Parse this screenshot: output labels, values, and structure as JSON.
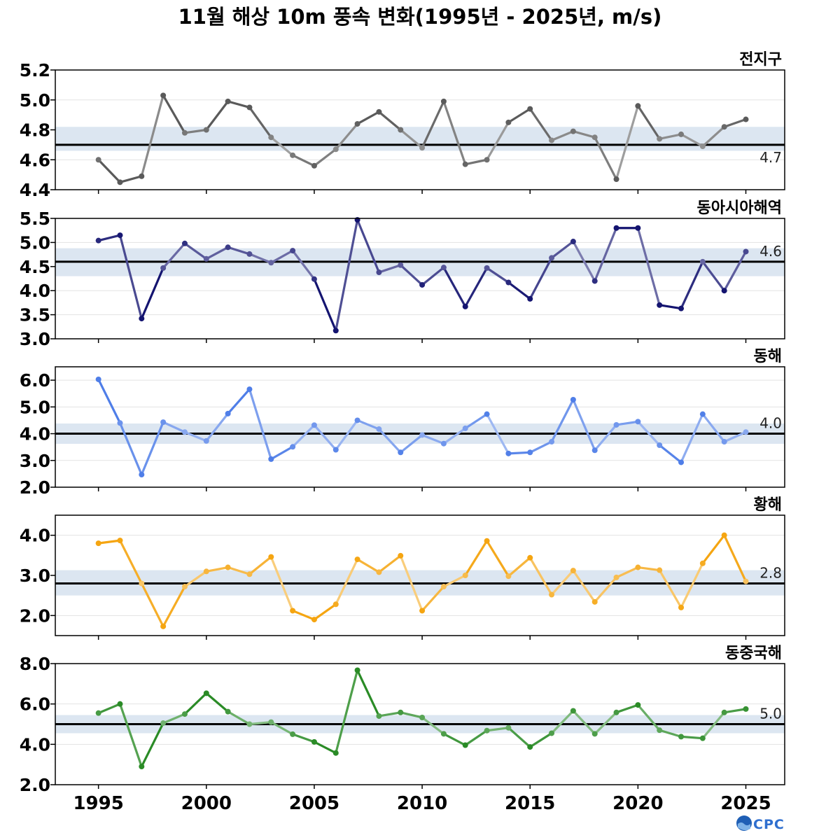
{
  "title": "11월 해상 10m 풍속 변화(1995년 - 2025년, m/s)",
  "logo_text": "OCPC",
  "colors": {
    "band": "#dce6f1",
    "mean_line": "#000000",
    "grid": "#e3e3e3",
    "axis": "#000000"
  },
  "chart_data": [
    {
      "type": "line",
      "region": "전지구",
      "color": "#5a5a5a",
      "mean_label": "4.7",
      "mean": 4.7,
      "band": [
        4.66,
        4.82
      ],
      "ylim": [
        4.4,
        5.2
      ],
      "yticks": [
        "4.4",
        "4.6",
        "4.8",
        "5.0",
        "5.2"
      ],
      "x": [
        1995,
        1996,
        1997,
        1998,
        1999,
        2000,
        2001,
        2002,
        2003,
        2004,
        2005,
        2006,
        2007,
        2008,
        2009,
        2010,
        2011,
        2012,
        2013,
        2014,
        2015,
        2016,
        2017,
        2018,
        2019,
        2020,
        2021,
        2022,
        2023,
        2024,
        2025
      ],
      "values": [
        4.6,
        4.45,
        4.49,
        5.03,
        4.78,
        4.8,
        4.99,
        4.95,
        4.75,
        4.63,
        4.56,
        4.67,
        4.84,
        4.92,
        4.8,
        4.68,
        4.99,
        4.57,
        4.6,
        4.85,
        4.94,
        4.73,
        4.79,
        4.75,
        4.47,
        4.96,
        4.74,
        4.77,
        4.69,
        4.82,
        4.87
      ]
    },
    {
      "type": "line",
      "region": "동아시아해역",
      "color": "#141470",
      "mean_label": "4.6",
      "mean": 4.6,
      "band": [
        4.3,
        4.88
      ],
      "ylim": [
        3.0,
        5.5
      ],
      "yticks": [
        "3.0",
        "3.5",
        "4.0",
        "4.5",
        "5.0",
        "5.5"
      ],
      "x": [
        1995,
        1996,
        1997,
        1998,
        1999,
        2000,
        2001,
        2002,
        2003,
        2004,
        2005,
        2006,
        2007,
        2008,
        2009,
        2010,
        2011,
        2012,
        2013,
        2014,
        2015,
        2016,
        2017,
        2018,
        2019,
        2020,
        2021,
        2022,
        2023,
        2024,
        2025
      ],
      "values": [
        5.04,
        5.15,
        3.42,
        4.47,
        4.98,
        4.66,
        4.9,
        4.76,
        4.58,
        4.83,
        4.24,
        3.17,
        5.47,
        4.38,
        4.53,
        4.12,
        4.48,
        3.67,
        4.47,
        4.17,
        3.83,
        4.68,
        5.02,
        4.2,
        5.3,
        5.3,
        3.7,
        3.63,
        4.6,
        4.0,
        4.81
      ]
    },
    {
      "type": "line",
      "region": "동해",
      "color": "#4f7ee8",
      "mean_label": "4.0",
      "mean": 4.0,
      "band": [
        3.62,
        4.38
      ],
      "ylim": [
        2.0,
        6.5
      ],
      "yticks": [
        "2.0",
        "3.0",
        "4.0",
        "5.0",
        "6.0"
      ],
      "x": [
        1995,
        1996,
        1997,
        1998,
        1999,
        2000,
        2001,
        2002,
        2003,
        2004,
        2005,
        2006,
        2007,
        2008,
        2009,
        2010,
        2011,
        2012,
        2013,
        2014,
        2015,
        2016,
        2017,
        2018,
        2019,
        2020,
        2021,
        2022,
        2023,
        2024,
        2025
      ],
      "values": [
        6.03,
        4.4,
        2.47,
        4.43,
        4.06,
        3.73,
        4.75,
        5.66,
        3.05,
        3.51,
        4.32,
        3.4,
        4.5,
        4.17,
        3.3,
        3.95,
        3.63,
        4.2,
        4.73,
        3.26,
        3.3,
        3.7,
        5.27,
        3.38,
        4.33,
        4.45,
        3.57,
        2.93,
        4.73,
        3.7,
        4.06
      ]
    },
    {
      "type": "line",
      "region": "황해",
      "color": "#f5a511",
      "mean_label": "2.8",
      "mean": 2.8,
      "band": [
        2.5,
        3.13
      ],
      "ylim": [
        1.5,
        4.5
      ],
      "yticks": [
        "2.0",
        "3.0",
        "4.0"
      ],
      "x": [
        1995,
        1996,
        1997,
        1998,
        1999,
        2000,
        2001,
        2002,
        2003,
        2004,
        2005,
        2006,
        2007,
        2008,
        2009,
        2010,
        2011,
        2012,
        2013,
        2014,
        2015,
        2016,
        2017,
        2018,
        2019,
        2020,
        2021,
        2022,
        2023,
        2024,
        2025
      ],
      "values": [
        3.8,
        3.87,
        2.8,
        1.73,
        2.72,
        3.1,
        3.2,
        3.03,
        3.46,
        2.12,
        1.9,
        2.28,
        3.4,
        3.08,
        3.49,
        2.12,
        2.72,
        3.0,
        3.86,
        2.98,
        3.44,
        2.52,
        3.12,
        2.34,
        2.95,
        3.2,
        3.13,
        2.2,
        3.3,
        4.0,
        2.85
      ]
    },
    {
      "type": "line",
      "region": "동중국해",
      "color": "#2a8b26",
      "mean_label": "5.0",
      "mean": 5.0,
      "band": [
        4.55,
        5.45
      ],
      "ylim": [
        2.0,
        8.0
      ],
      "yticks": [
        "2.0",
        "4.0",
        "6.0",
        "8.0"
      ],
      "x": [
        1995,
        1996,
        1997,
        1998,
        1999,
        2000,
        2001,
        2002,
        2003,
        2004,
        2005,
        2006,
        2007,
        2008,
        2009,
        2010,
        2011,
        2012,
        2013,
        2014,
        2015,
        2016,
        2017,
        2018,
        2019,
        2020,
        2021,
        2022,
        2023,
        2024,
        2025
      ],
      "values": [
        5.55,
        6.0,
        2.9,
        5.05,
        5.5,
        6.53,
        5.62,
        5.0,
        5.1,
        4.5,
        4.12,
        3.57,
        7.67,
        5.4,
        5.58,
        5.33,
        4.52,
        3.96,
        4.68,
        4.82,
        3.87,
        4.55,
        5.66,
        4.52,
        5.58,
        5.95,
        4.7,
        4.38,
        4.3,
        5.58,
        5.75
      ]
    }
  ],
  "xaxis": {
    "range": [
      1993,
      2026.8
    ],
    "ticks": [
      "1995",
      "2000",
      "2005",
      "2010",
      "2015",
      "2020",
      "2025"
    ]
  }
}
